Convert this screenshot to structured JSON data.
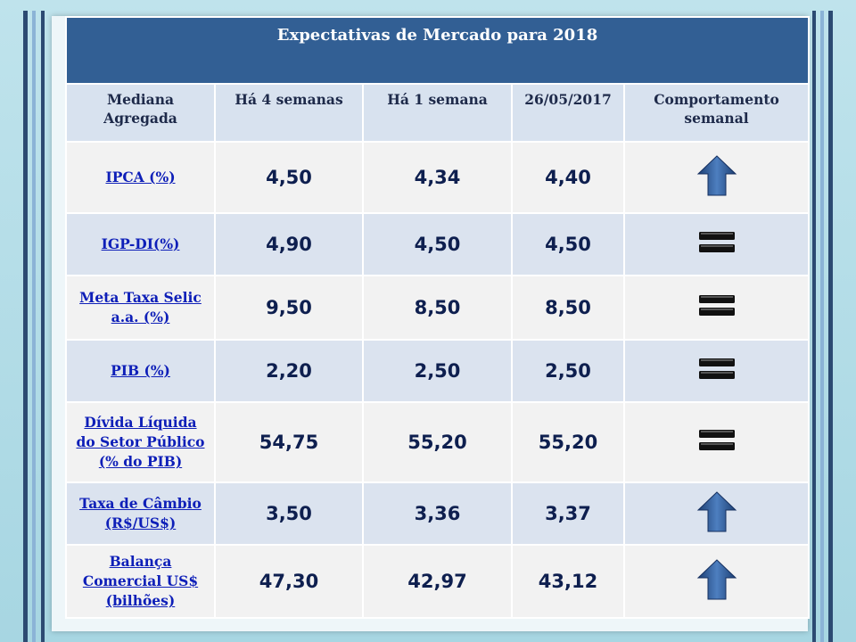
{
  "title": "Expectativas de Mercado para 2018",
  "headers": [
    "Mediana Agregada",
    "Há 4 semanas",
    "Há 1 semana",
    "26/05/2017",
    "Comportamento semanal"
  ],
  "rows": [
    {
      "label": "IPCA (%)",
      "w4": "4,50",
      "w1": "4,34",
      "date": "4,40",
      "trend": "up-arrow-icon"
    },
    {
      "label": "IGP-DI(%)",
      "w4": "4,90",
      "w1": "4,50",
      "date": "4,50",
      "trend": "equal-icon"
    },
    {
      "label": "Meta Taxa Selic a.a. (%)",
      "w4": "9,50",
      "w1": "8,50",
      "date": "8,50",
      "trend": "equal-icon"
    },
    {
      "label": "PIB (%)",
      "w4": "2,20",
      "w1": "2,50",
      "date": "2,50",
      "trend": "equal-icon"
    },
    {
      "label": "Dívida Líquida do Setor Público (% do PIB)",
      "w4": "54,75",
      "w1": "55,20",
      "date": "55,20",
      "trend": "equal-icon"
    },
    {
      "label": "Taxa de Câmbio (R$/US$)",
      "w4": "3,50",
      "w1": "3,36",
      "date": "3,37",
      "trend": "up-arrow-icon"
    },
    {
      "label": "Balança Comercial US$ (bilhões)",
      "w4": "47,30",
      "w1": "42,97",
      "date": "43,12",
      "trend": "up-arrow-icon"
    }
  ],
  "colors": {
    "title_bg": "#325f94",
    "header_bg": "#d8e2ef",
    "link": "#0e1fb8",
    "value": "#0e1f4f"
  }
}
